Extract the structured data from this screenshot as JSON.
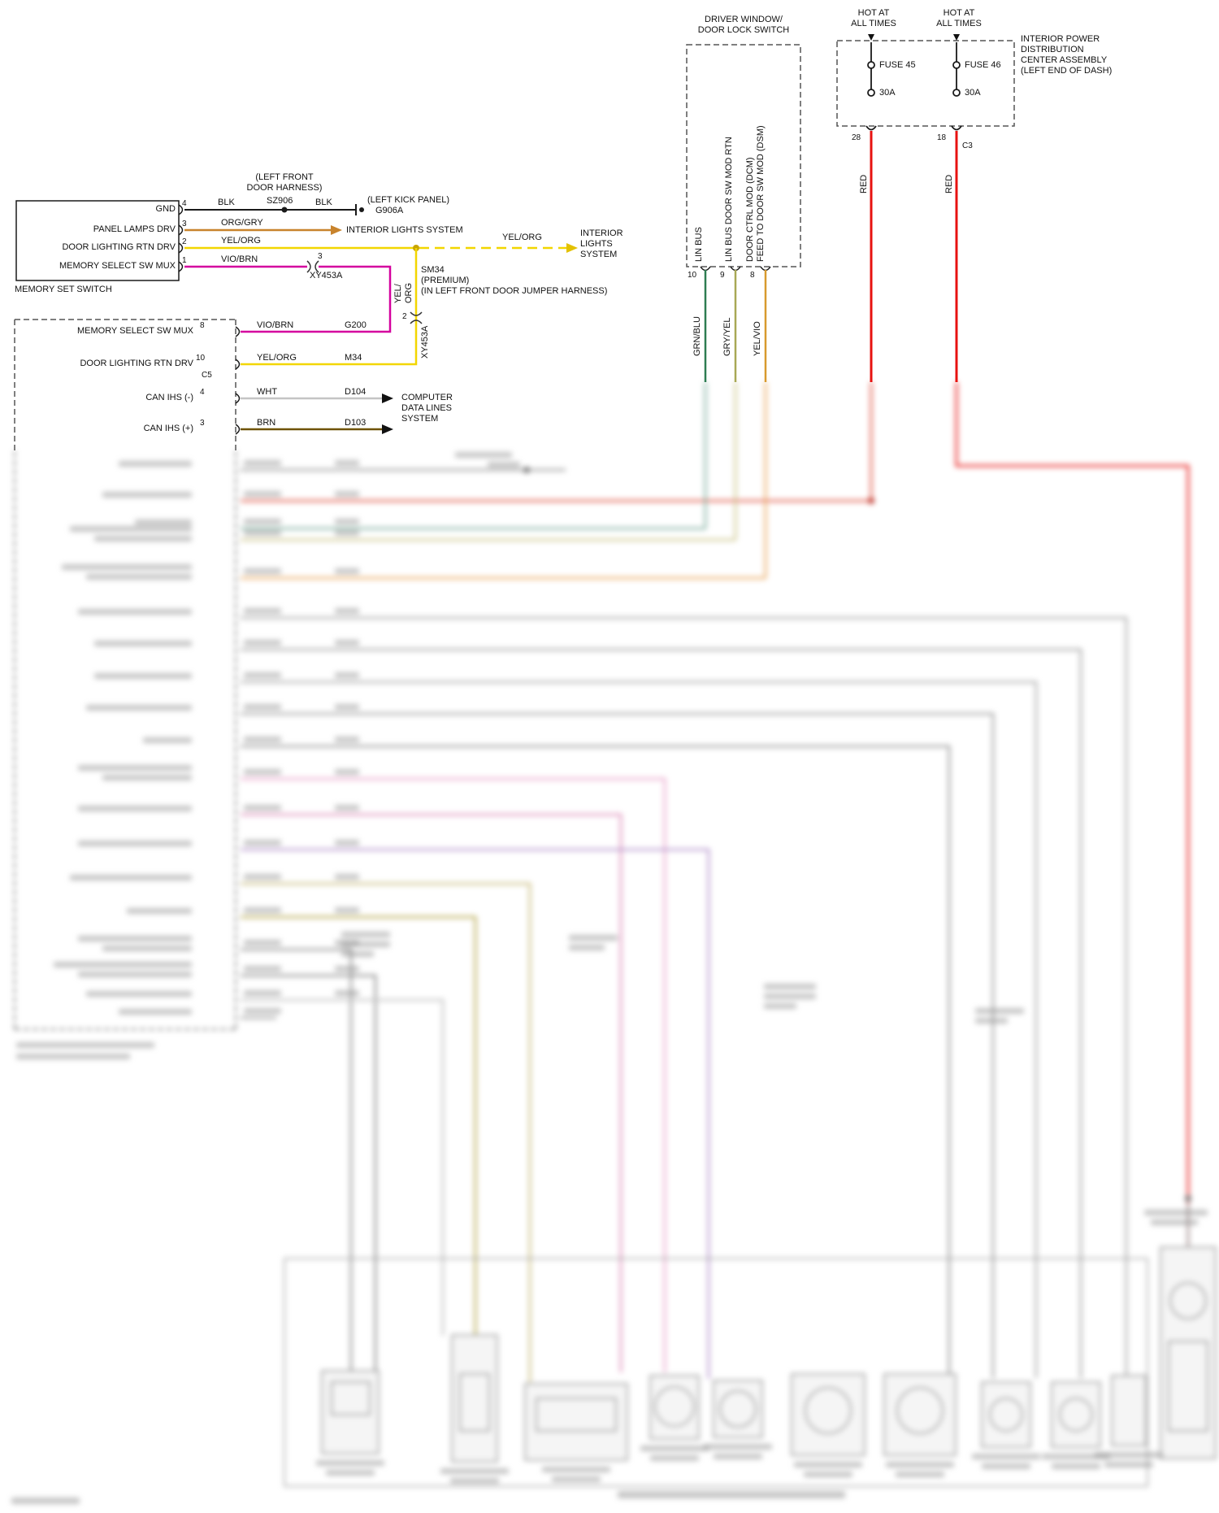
{
  "memory_switch": {
    "title": "MEMORY SET SWITCH",
    "pins": [
      {
        "num": "4",
        "label": "GND"
      },
      {
        "num": "3",
        "label": "PANEL LAMPS DRV"
      },
      {
        "num": "2",
        "label": "DOOR LIGHTING RTN DRV"
      },
      {
        "num": "1",
        "label": "MEMORY SELECT SW MUX"
      }
    ]
  },
  "gnd": {
    "wire_a": "BLK",
    "splice": "SZ906",
    "wire_b": "BLK",
    "harness_note": "(LEFT FRONT\nDOOR HARNESS)",
    "kick_panel": "(LEFT KICK PANEL)",
    "ground_id": "G906A"
  },
  "panel_lamps": {
    "wire": "ORG/GRY",
    "dest": "INTERIOR LIGHTS SYSTEM"
  },
  "door_lighting": {
    "wire": "YEL/ORG",
    "wire_dashed": "YEL/ORG",
    "dest": "INTERIOR\nLIGHTS\nSYSTEM",
    "splice": "SM34",
    "splice_note1": "(PREMIUM)",
    "splice_note2": "(IN LEFT FRONT DOOR JUMPER HARNESS)",
    "vertical_wire": "YEL/\nORG",
    "vertical_conn_pin": "2",
    "vertical_conn": "XY453A"
  },
  "memory_mux": {
    "wire": "VIO/BRN",
    "conn_pin": "3",
    "conn": "XY453A"
  },
  "door_module": {
    "rows": [
      {
        "pin": "8",
        "label": "MEMORY SELECT SW MUX",
        "wire": "VIO/BRN",
        "circuit": "G200"
      },
      {
        "pin": "10",
        "label": "DOOR LIGHTING RTN DRV",
        "wire": "YEL/ORG",
        "circuit": "M34",
        "connector": "C5"
      },
      {
        "pin": "4",
        "label": "CAN IHS (-)",
        "wire": "WHT",
        "circuit": "D104"
      },
      {
        "pin": "3",
        "label": "CAN IHS (+)",
        "wire": "BRN",
        "circuit": "D103"
      }
    ],
    "dest": "COMPUTER\nDATA LINES\nSYSTEM"
  },
  "window_switch": {
    "title": "DRIVER WINDOW/\nDOOR LOCK SWITCH",
    "signal_lin": "LIN BUS",
    "signal_rtn": "LIN BUS DOOR SW MOD RTN",
    "signal_feed": "DOOR CTRL MOD (DCM)\nFEED TO DOOR SW MOD (DSM)",
    "pins": [
      "10",
      "9",
      "8"
    ],
    "wires": [
      "GRN/BLU",
      "GRY/YEL",
      "YEL/VIO"
    ]
  },
  "power": {
    "hot_label": "HOT AT\nALL TIMES",
    "title": "INTERIOR POWER\nDISTRIBUTION\nCENTER ASSEMBLY\n(LEFT END OF DASH)",
    "fuses": [
      {
        "name": "FUSE 45",
        "rating": "30A"
      },
      {
        "name": "FUSE 46",
        "rating": "30A"
      }
    ],
    "pins": [
      "28",
      "18"
    ],
    "connector": "C3",
    "wire_color": "RED"
  },
  "colors": {
    "blk": "#1a1a1a",
    "org_gry": "#c8832c",
    "yel_org": "#f2d600",
    "vio_brn": "#d4009e",
    "wht": "#c4c4c4",
    "brn": "#6e5200",
    "grn_blu": "#2e7d52",
    "gry_yel": "#a8a855",
    "yel_vio": "#d89a2e",
    "red": "#e71210"
  }
}
